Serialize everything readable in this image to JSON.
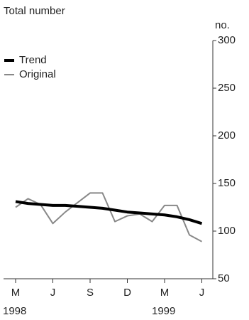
{
  "chart_data": {
    "type": "line",
    "title": "Total number",
    "y_unit": "no.",
    "categories": [
      "M",
      null,
      null,
      "J",
      null,
      null,
      "S",
      null,
      null,
      "D",
      null,
      null,
      "M",
      null,
      null,
      "J"
    ],
    "years": [
      "1998",
      null,
      null,
      null,
      null,
      null,
      null,
      null,
      null,
      null,
      null,
      null,
      "1999",
      null,
      null,
      null
    ],
    "series": [
      {
        "name": "Trend",
        "color": "#000000",
        "values": [
          131,
          129,
          128,
          127,
          127,
          126,
          125,
          124,
          122,
          120,
          119,
          118,
          117,
          115,
          112,
          108
        ]
      },
      {
        "name": "Original",
        "color": "#888888",
        "values": [
          125,
          134,
          128,
          108,
          120,
          130,
          140,
          140,
          110,
          116,
          118,
          110,
          127,
          127,
          96,
          89
        ]
      }
    ],
    "ylim": [
      50,
      300
    ],
    "yticks": [
      50,
      100,
      150,
      200,
      250,
      300
    ],
    "legend": "top-left"
  }
}
